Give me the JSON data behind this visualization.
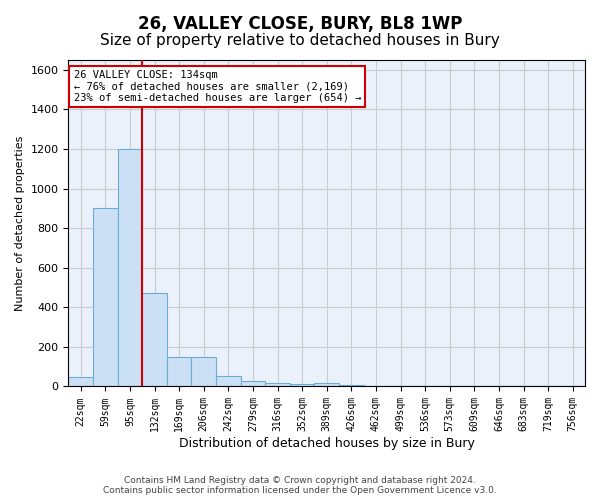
{
  "title": "26, VALLEY CLOSE, BURY, BL8 1WP",
  "subtitle": "Size of property relative to detached houses in Bury",
  "xlabel": "Distribution of detached houses by size in Bury",
  "ylabel": "Number of detached properties",
  "footer_line1": "Contains HM Land Registry data © Crown copyright and database right 2024.",
  "footer_line2": "Contains public sector information licensed under the Open Government Licence v3.0.",
  "bin_labels": [
    "22sqm",
    "59sqm",
    "95sqm",
    "132sqm",
    "169sqm",
    "206sqm",
    "242sqm",
    "279sqm",
    "316sqm",
    "352sqm",
    "389sqm",
    "426sqm",
    "462sqm",
    "499sqm",
    "536sqm",
    "573sqm",
    "609sqm",
    "646sqm",
    "683sqm",
    "719sqm",
    "756sqm"
  ],
  "bar_values": [
    50,
    900,
    1200,
    470,
    150,
    150,
    55,
    30,
    20,
    10,
    20,
    5,
    2,
    0,
    0,
    0,
    0,
    0,
    0,
    0,
    0
  ],
  "bar_color": "#cce0f5",
  "bar_edge_color": "#6aaed6",
  "annotation_line1": "26 VALLEY CLOSE: 134sqm",
  "annotation_line2": "← 76% of detached houses are smaller (2,169)",
  "annotation_line3": "23% of semi-detached houses are larger (654) →",
  "annotation_box_color": "#ffffff",
  "annotation_box_edge": "#cc0000",
  "property_line_color": "#cc0000",
  "property_line_bin": 3,
  "ylim": [
    0,
    1650
  ],
  "yticks": [
    0,
    200,
    400,
    600,
    800,
    1000,
    1200,
    1400,
    1600
  ],
  "grid_color": "#cccccc",
  "bg_color": "#eaf1fb",
  "title_fontsize": 12,
  "subtitle_fontsize": 11
}
